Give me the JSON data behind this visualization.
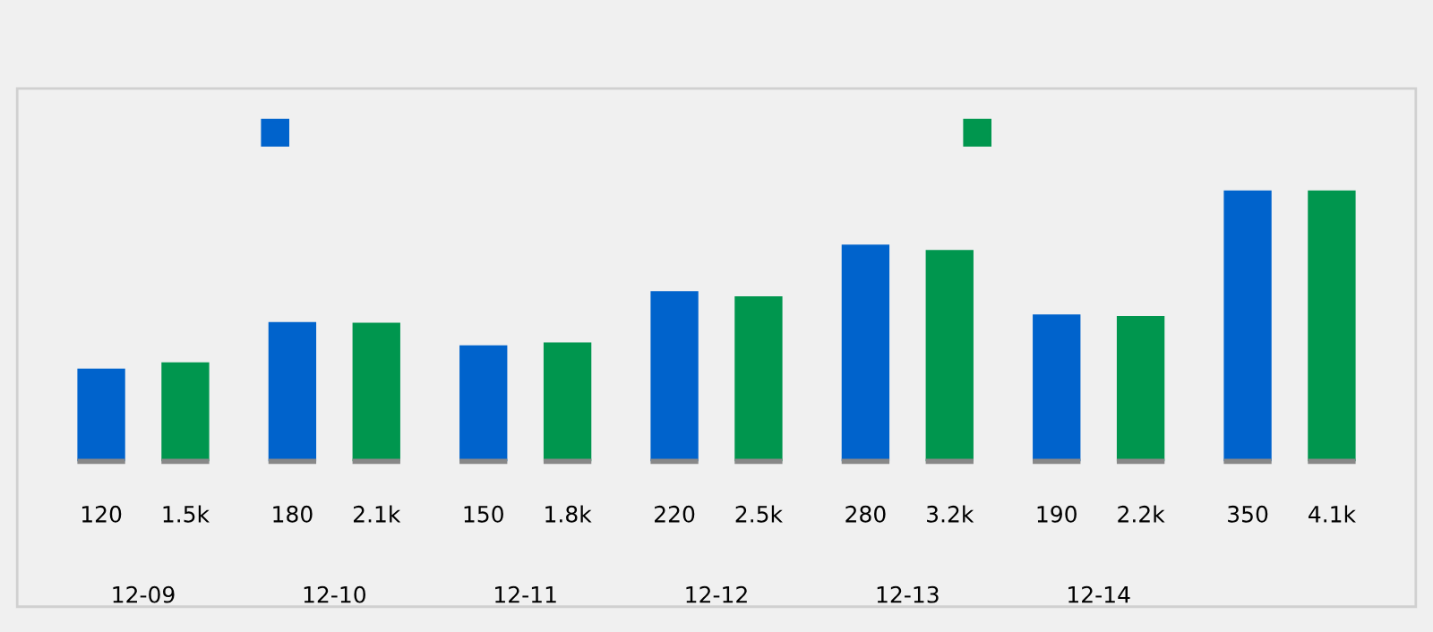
{
  "chart_data": {
    "type": "bar",
    "categories": [
      "12-09",
      "12-10",
      "12-11",
      "12-12",
      "12-13",
      "12-14",
      null
    ],
    "series": [
      {
        "color": "#0063cc",
        "values": [
          120,
          180,
          150,
          220,
          280,
          190,
          350
        ],
        "value_labels": [
          "120",
          "180",
          "150",
          "220",
          "280",
          "190",
          "350"
        ]
      },
      {
        "color": "#00964e",
        "axis": "y2",
        "values": [
          1500,
          2100,
          1800,
          2500,
          3200,
          2200,
          4100
        ],
        "value_labels": [
          "1.5k",
          "2.1k",
          "1.8k",
          "2.5k",
          "3.2k",
          "2.2k",
          "4.1k"
        ]
      }
    ],
    "grid": false
  }
}
